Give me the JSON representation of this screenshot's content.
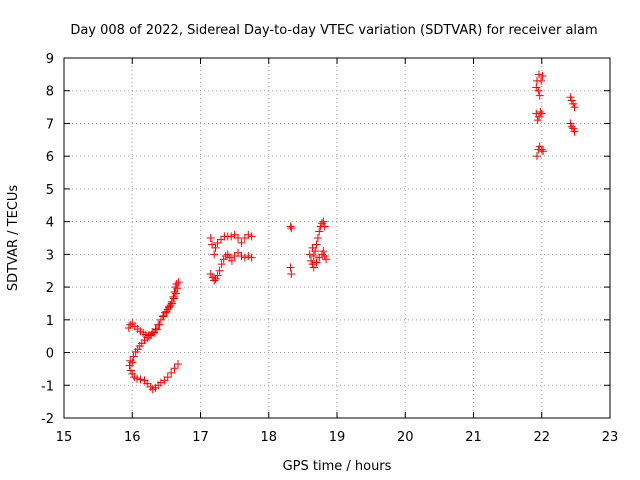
{
  "chart_data": {
    "type": "scatter",
    "title": "Day 008 of 2022, Sidereal Day-to-day VTEC variation (SDTVAR) for receiver alam",
    "xlabel": "GPS time / hours",
    "ylabel": "SDTVAR / TECUs",
    "xlim": [
      15,
      23
    ],
    "ylim": [
      -2,
      9
    ],
    "xticks": [
      "15",
      "16",
      "17",
      "18",
      "19",
      "20",
      "21",
      "22",
      "23"
    ],
    "yticks": [
      "-2",
      "-1",
      "0",
      "1",
      "2",
      "3",
      "4",
      "5",
      "6",
      "7",
      "8",
      "9"
    ],
    "grid": true,
    "marker": "plus",
    "color": "#ff0000",
    "series": [
      {
        "points": [
          [
            15.95,
            0.75
          ],
          [
            15.97,
            0.85
          ],
          [
            16.0,
            0.9
          ],
          [
            16.04,
            0.8
          ],
          [
            16.08,
            0.72
          ],
          [
            16.12,
            0.65
          ],
          [
            16.16,
            0.6
          ],
          [
            16.2,
            0.55
          ],
          [
            16.24,
            0.52
          ],
          [
            16.28,
            0.55
          ],
          [
            16.32,
            0.6
          ],
          [
            16.36,
            0.7
          ],
          [
            16.4,
            0.85
          ],
          [
            15.97,
            -0.25
          ],
          [
            15.96,
            -0.4
          ],
          [
            15.98,
            -0.55
          ],
          [
            16.0,
            -0.65
          ],
          [
            16.03,
            -0.75
          ],
          [
            16.07,
            -0.8
          ],
          [
            16.12,
            -0.82
          ],
          [
            16.18,
            -0.85
          ],
          [
            16.22,
            -0.95
          ],
          [
            16.27,
            -1.05
          ],
          [
            16.3,
            -1.12
          ],
          [
            16.34,
            -1.08
          ],
          [
            16.38,
            -1.0
          ],
          [
            16.42,
            -0.92
          ],
          [
            16.47,
            -0.85
          ],
          [
            16.52,
            -0.75
          ],
          [
            16.57,
            -0.62
          ],
          [
            16.62,
            -0.48
          ],
          [
            16.67,
            -0.35
          ],
          [
            16.0,
            -0.3
          ],
          [
            16.02,
            -0.12
          ],
          [
            16.05,
            0.02
          ],
          [
            16.08,
            0.1
          ],
          [
            16.11,
            0.2
          ],
          [
            16.14,
            0.28
          ],
          [
            16.18,
            0.38
          ],
          [
            16.22,
            0.45
          ],
          [
            16.26,
            0.52
          ],
          [
            16.3,
            0.62
          ],
          [
            16.34,
            0.72
          ],
          [
            16.38,
            0.85
          ],
          [
            16.42,
            1.0
          ],
          [
            16.46,
            1.12
          ],
          [
            16.5,
            1.25
          ],
          [
            16.54,
            1.4
          ],
          [
            16.58,
            1.55
          ],
          [
            16.6,
            1.7
          ],
          [
            16.62,
            1.85
          ],
          [
            16.63,
            2.0
          ],
          [
            16.65,
            2.1
          ],
          [
            16.68,
            2.15
          ],
          [
            16.66,
            1.95
          ],
          [
            16.64,
            1.8
          ],
          [
            16.61,
            1.65
          ],
          [
            16.58,
            1.5
          ],
          [
            16.56,
            1.45
          ],
          [
            16.54,
            1.38
          ],
          [
            16.52,
            1.32
          ],
          [
            16.48,
            1.22
          ],
          [
            16.45,
            1.1
          ],
          [
            17.15,
            3.5
          ],
          [
            17.17,
            3.3
          ],
          [
            17.2,
            3.0
          ],
          [
            17.22,
            3.2
          ],
          [
            17.25,
            3.35
          ],
          [
            17.3,
            3.45
          ],
          [
            17.35,
            3.55
          ],
          [
            17.4,
            3.55
          ],
          [
            17.45,
            3.55
          ],
          [
            17.5,
            3.6
          ],
          [
            17.55,
            3.5
          ],
          [
            17.6,
            3.35
          ],
          [
            17.65,
            3.5
          ],
          [
            17.7,
            3.6
          ],
          [
            17.75,
            3.55
          ],
          [
            17.15,
            2.4
          ],
          [
            17.18,
            2.3
          ],
          [
            17.2,
            2.2
          ],
          [
            17.22,
            2.25
          ],
          [
            17.25,
            2.35
          ],
          [
            17.28,
            2.5
          ],
          [
            17.31,
            2.7
          ],
          [
            17.34,
            2.85
          ],
          [
            17.37,
            2.95
          ],
          [
            17.4,
            3.0
          ],
          [
            17.43,
            2.9
          ],
          [
            17.46,
            2.8
          ],
          [
            17.5,
            2.95
          ],
          [
            17.55,
            3.05
          ],
          [
            17.6,
            2.95
          ],
          [
            17.65,
            2.9
          ],
          [
            17.7,
            2.95
          ],
          [
            17.75,
            2.9
          ],
          [
            18.32,
            3.85
          ],
          [
            18.33,
            3.8
          ],
          [
            18.32,
            2.6
          ],
          [
            18.33,
            2.4
          ],
          [
            18.6,
            3.0
          ],
          [
            18.62,
            2.8
          ],
          [
            18.64,
            2.7
          ],
          [
            18.66,
            2.95
          ],
          [
            18.68,
            3.1
          ],
          [
            18.7,
            3.3
          ],
          [
            18.72,
            3.5
          ],
          [
            18.74,
            3.7
          ],
          [
            18.76,
            3.85
          ],
          [
            18.78,
            3.95
          ],
          [
            18.8,
            4.0
          ],
          [
            18.82,
            3.85
          ],
          [
            18.64,
            3.2
          ],
          [
            18.66,
            2.6
          ],
          [
            18.7,
            2.75
          ],
          [
            18.74,
            2.9
          ],
          [
            18.78,
            3.0
          ],
          [
            18.8,
            3.1
          ],
          [
            18.82,
            2.95
          ],
          [
            18.84,
            2.85
          ],
          [
            21.92,
            8.1
          ],
          [
            21.93,
            8.3
          ],
          [
            21.95,
            8.0
          ],
          [
            21.97,
            7.85
          ],
          [
            21.99,
            8.3
          ],
          [
            22.01,
            8.45
          ],
          [
            21.96,
            8.5
          ],
          [
            21.92,
            7.3
          ],
          [
            21.94,
            7.1
          ],
          [
            21.96,
            7.2
          ],
          [
            21.98,
            7.35
          ],
          [
            22.0,
            7.3
          ],
          [
            21.93,
            6.0
          ],
          [
            21.95,
            6.2
          ],
          [
            21.97,
            6.3
          ],
          [
            22.0,
            6.2
          ],
          [
            22.02,
            6.15
          ],
          [
            22.42,
            7.8
          ],
          [
            22.44,
            7.7
          ],
          [
            22.46,
            7.6
          ],
          [
            22.48,
            7.5
          ],
          [
            22.42,
            7.0
          ],
          [
            22.44,
            6.9
          ],
          [
            22.46,
            6.85
          ],
          [
            22.48,
            6.75
          ]
        ]
      }
    ]
  }
}
